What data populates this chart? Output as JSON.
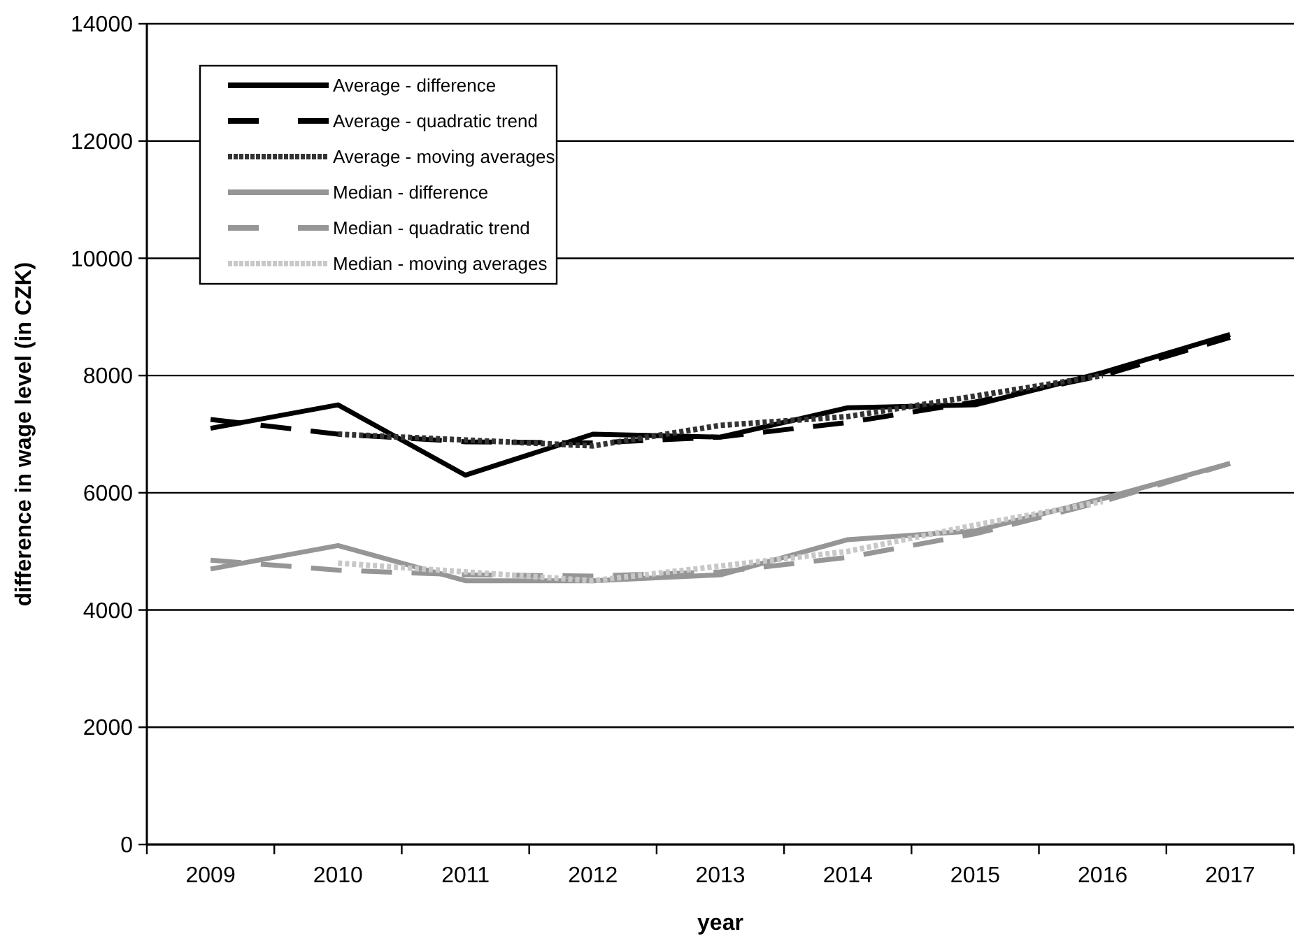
{
  "chart_data": {
    "type": "line",
    "xlabel": "year",
    "ylabel": "difference in wage level (in CZK)",
    "categories": [
      "2009",
      "2010",
      "2011",
      "2012",
      "2013",
      "2014",
      "2015",
      "2016",
      "2017"
    ],
    "ylim": [
      0,
      14000
    ],
    "yticks": [
      0,
      2000,
      4000,
      6000,
      8000,
      10000,
      12000,
      14000
    ],
    "grid": "y",
    "legend": "top left",
    "marker": "none",
    "series": [
      {
        "name": "Average - difference",
        "color": "#000000",
        "line_style": "solid",
        "values": [
          7100,
          7500,
          6300,
          7000,
          6950,
          7450,
          7500,
          8050,
          8700
        ]
      },
      {
        "name": "Average - quadratic trend",
        "color": "#000000",
        "line_style": "dashed",
        "values": [
          7250,
          7000,
          6870,
          6850,
          6950,
          7200,
          7550,
          8000,
          8650
        ]
      },
      {
        "name": "Average - moving averages",
        "color": "#333333",
        "line_style": "dotted",
        "values": [
          null,
          7000,
          6900,
          6800,
          7150,
          7300,
          7650,
          8000,
          null
        ]
      },
      {
        "name": "Median - difference",
        "color": "#969696",
        "line_style": "solid",
        "values": [
          4700,
          5100,
          4500,
          4500,
          4600,
          5200,
          5350,
          5900,
          6500
        ]
      },
      {
        "name": "Median - quadratic trend",
        "color": "#969696",
        "line_style": "dashed",
        "values": [
          4850,
          4680,
          4600,
          4580,
          4650,
          4900,
          5300,
          5850,
          6500
        ]
      },
      {
        "name": "Median - moving averages",
        "color": "#c8c8c8",
        "line_style": "dotted",
        "values": [
          null,
          4800,
          4650,
          4500,
          4750,
          5000,
          5450,
          5850,
          null
        ]
      }
    ]
  }
}
